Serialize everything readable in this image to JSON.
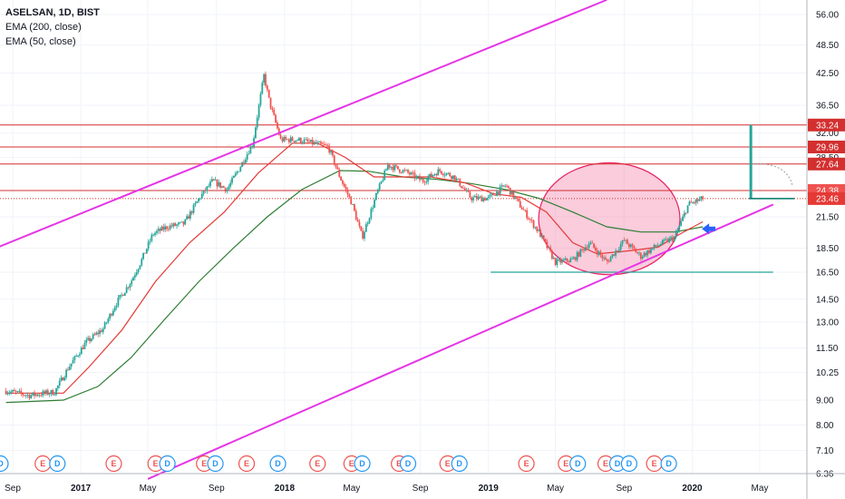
{
  "header": {
    "symbol_line": "ASELSAN, 1D, BIST",
    "indicator_1": "EMA (200, close)",
    "indicator_2": "EMA (50, close)"
  },
  "colors": {
    "up": "#26a69a",
    "down": "#ef5350",
    "ema50": "#e53935",
    "ema200": "#2e7d32",
    "channel": "#e535e5",
    "hline": "#d32f2f",
    "support": "#26a69a",
    "ellipse_fill": "#f48fb1",
    "ellipse_stroke": "#e91e63",
    "arrow": "#2962ff",
    "dividend": "#2196f3",
    "earnings": "#ef5350"
  },
  "chart_data": {
    "type": "candlestick",
    "y_scale": "log",
    "ylim": [
      6.2,
      60
    ],
    "y_ticks": [
      "56.00",
      "48.50",
      "42.50",
      "36.50",
      "32.00",
      "28.50",
      "24.38",
      "21.50",
      "18.50",
      "16.50",
      "14.50",
      "13.00",
      "11.50",
      "10.25",
      "9.00",
      "8.00",
      "7.10",
      "6.36"
    ],
    "x_ticks": [
      "Sep",
      "2017",
      "May",
      "Sep",
      "2018",
      "May",
      "Sep",
      "2019",
      "May",
      "Sep",
      "2020",
      "May"
    ],
    "x_ticks_bold": [
      "2017",
      "2018",
      "2019",
      "2020"
    ],
    "price_labels": [
      {
        "text": "33.24",
        "value": 33.24,
        "kind": "line"
      },
      {
        "text": "29.96",
        "value": 29.96,
        "kind": "line"
      },
      {
        "text": "27.64",
        "value": 27.64,
        "kind": "line"
      },
      {
        "text": "24.38",
        "value": 24.38,
        "kind": "dark"
      },
      {
        "text": "23.46",
        "value": 23.46,
        "kind": "last"
      }
    ],
    "horizontal_lines": [
      33.24,
      29.96,
      27.64,
      24.38
    ],
    "last_price": 23.46,
    "support_level": 16.5,
    "price_path": [
      [
        "2016-08-20",
        9.4
      ],
      [
        "2016-10-01",
        9.2
      ],
      [
        "2016-11-15",
        9.35
      ],
      [
        "2016-12-10",
        10.5
      ],
      [
        "2017-01-10",
        11.8
      ],
      [
        "2017-02-10",
        12.6
      ],
      [
        "2017-03-05",
        14.2
      ],
      [
        "2017-04-01",
        15.8
      ],
      [
        "2017-04-20",
        17.5
      ],
      [
        "2017-05-10",
        19.8
      ],
      [
        "2017-06-05",
        20.5
      ],
      [
        "2017-07-05",
        20.8
      ],
      [
        "2017-08-01",
        23.5
      ],
      [
        "2017-08-25",
        25.5
      ],
      [
        "2017-09-20",
        24.5
      ],
      [
        "2017-10-15",
        27.5
      ],
      [
        "2017-11-05",
        30.5
      ],
      [
        "2017-11-25",
        42.0
      ],
      [
        "2017-12-05",
        37.0
      ],
      [
        "2017-12-25",
        31.0
      ],
      [
        "2018-01-25",
        31.0
      ],
      [
        "2018-02-20",
        30.5
      ],
      [
        "2018-03-20",
        30.0
      ],
      [
        "2018-04-10",
        26.0
      ],
      [
        "2018-05-01",
        23.0
      ],
      [
        "2018-05-20",
        19.5
      ],
      [
        "2018-06-15",
        24.0
      ],
      [
        "2018-07-05",
        27.5
      ],
      [
        "2018-08-10",
        26.5
      ],
      [
        "2018-09-05",
        25.5
      ],
      [
        "2018-10-05",
        26.8
      ],
      [
        "2018-11-01",
        26.0
      ],
      [
        "2018-12-01",
        23.5
      ],
      [
        "2019-01-01",
        23.5
      ],
      [
        "2019-02-01",
        25.0
      ],
      [
        "2019-03-01",
        22.5
      ],
      [
        "2019-04-01",
        20.0
      ],
      [
        "2019-05-01",
        17.3
      ],
      [
        "2019-06-01",
        17.5
      ],
      [
        "2019-07-01",
        19.0
      ],
      [
        "2019-08-01",
        17.3
      ],
      [
        "2019-09-01",
        19.2
      ],
      [
        "2019-10-01",
        17.8
      ],
      [
        "2019-11-01",
        18.8
      ],
      [
        "2019-12-01",
        19.5
      ],
      [
        "2019-12-25",
        22.8
      ],
      [
        "2020-01-20",
        23.46
      ]
    ],
    "ema50_path": [
      [
        "2016-08-20",
        9.3
      ],
      [
        "2016-12-01",
        9.3
      ],
      [
        "2017-01-15",
        10.5
      ],
      [
        "2017-03-15",
        12.5
      ],
      [
        "2017-05-15",
        15.8
      ],
      [
        "2017-07-15",
        19.0
      ],
      [
        "2017-09-15",
        22.0
      ],
      [
        "2017-11-15",
        26.5
      ],
      [
        "2018-01-15",
        30.5
      ],
      [
        "2018-03-01",
        30.5
      ],
      [
        "2018-04-20",
        28.5
      ],
      [
        "2018-06-10",
        26.0
      ],
      [
        "2018-07-20",
        26.0
      ],
      [
        "2018-09-20",
        26.0
      ],
      [
        "2018-11-20",
        25.3
      ],
      [
        "2019-01-10",
        24.0
      ],
      [
        "2019-03-01",
        23.6
      ],
      [
        "2019-04-15",
        22.0
      ],
      [
        "2019-06-01",
        19.0
      ],
      [
        "2019-07-15",
        18.0
      ],
      [
        "2019-09-15",
        18.3
      ],
      [
        "2019-11-01",
        18.6
      ],
      [
        "2019-12-10",
        19.8
      ],
      [
        "2020-01-20",
        21.0
      ]
    ],
    "ema200_path": [
      [
        "2016-08-20",
        8.9
      ],
      [
        "2016-12-01",
        9.0
      ],
      [
        "2017-02-01",
        9.6
      ],
      [
        "2017-04-01",
        11.0
      ],
      [
        "2017-06-01",
        13.2
      ],
      [
        "2017-08-01",
        15.8
      ],
      [
        "2017-10-01",
        18.5
      ],
      [
        "2017-12-01",
        21.5
      ],
      [
        "2018-02-01",
        24.5
      ],
      [
        "2018-04-10",
        26.8
      ],
      [
        "2018-06-01",
        26.7
      ],
      [
        "2018-08-01",
        26.0
      ],
      [
        "2018-10-01",
        25.7
      ],
      [
        "2018-12-01",
        25.2
      ],
      [
        "2019-02-01",
        24.5
      ],
      [
        "2019-04-01",
        23.5
      ],
      [
        "2019-06-01",
        22.0
      ],
      [
        "2019-08-01",
        20.5
      ],
      [
        "2019-10-01",
        20.0
      ],
      [
        "2019-12-01",
        20.0
      ],
      [
        "2020-01-20",
        20.5
      ]
    ],
    "events": [
      {
        "type": "D",
        "date": "2016-08-10"
      },
      {
        "type": "E",
        "date": "2016-10-25"
      },
      {
        "type": "D",
        "date": "2016-11-20"
      },
      {
        "type": "E",
        "date": "2017-03-01"
      },
      {
        "type": "E",
        "date": "2017-05-15"
      },
      {
        "type": "D",
        "date": "2017-06-05"
      },
      {
        "type": "E",
        "date": "2017-08-10"
      },
      {
        "type": "D",
        "date": "2017-08-30"
      },
      {
        "type": "E",
        "date": "2017-10-25"
      },
      {
        "type": "D",
        "date": "2017-12-20"
      },
      {
        "type": "E",
        "date": "2018-03-01"
      },
      {
        "type": "E",
        "date": "2018-05-01"
      },
      {
        "type": "D",
        "date": "2018-05-20"
      },
      {
        "type": "E",
        "date": "2018-07-25"
      },
      {
        "type": "D",
        "date": "2018-08-10"
      },
      {
        "type": "E",
        "date": "2018-10-20"
      },
      {
        "type": "D",
        "date": "2018-11-10"
      },
      {
        "type": "E",
        "date": "2019-03-10"
      },
      {
        "type": "E",
        "date": "2019-05-20"
      },
      {
        "type": "D",
        "date": "2019-06-10"
      },
      {
        "type": "E",
        "date": "2019-07-30"
      },
      {
        "type": "D",
        "date": "2019-08-20"
      },
      {
        "type": "D",
        "date": "2019-09-10"
      },
      {
        "type": "E",
        "date": "2019-10-25"
      },
      {
        "type": "D",
        "date": "2019-11-20"
      }
    ],
    "drawings": {
      "channel_upper": [
        [
          "2016-08-01",
          18.5
        ],
        [
          "2019-08-01",
          60.0
        ]
      ],
      "channel_lower": [
        [
          "2017-05-01",
          6.2
        ],
        [
          "2020-05-25",
          22.8
        ]
      ],
      "ellipse_bounds": {
        "x": [
          "2019-04-01",
          "2019-12-10"
        ],
        "y": [
          16.3,
          27.8
        ]
      },
      "support_line": {
        "x": [
          "2019-01-05",
          "2020-05-25"
        ],
        "value": 16.5
      },
      "target_bar": {
        "date": "2020-04-15",
        "y": [
          23.46,
          33.24
        ]
      },
      "arrow_date": "2020-01-28",
      "arrow_value": 20.3
    }
  }
}
